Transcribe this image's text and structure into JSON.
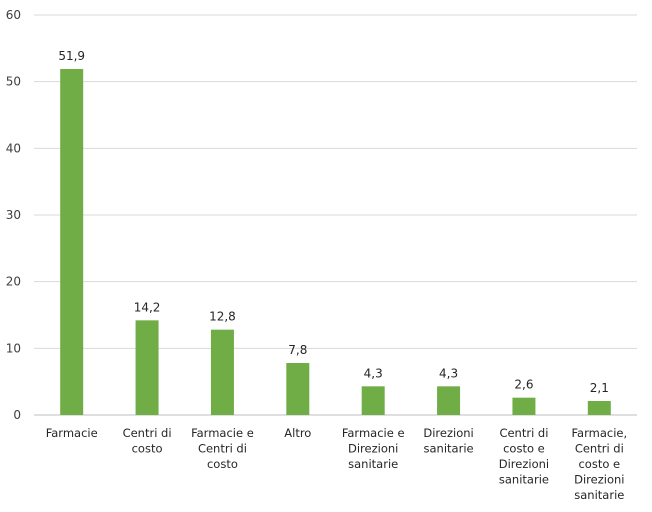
{
  "chart_data": {
    "type": "bar",
    "title": "",
    "xlabel": "",
    "ylabel": "",
    "ylim": [
      0,
      60
    ],
    "yticks": [
      0,
      10,
      20,
      30,
      40,
      50,
      60
    ],
    "grid": true,
    "legend": "none",
    "bar_color": "#70AD47",
    "grid_color": "#D9D9D9",
    "categories": [
      "Farmacie",
      "Centri di costo",
      "Farmacie e Centri di costo",
      "Altro",
      "Farmacie e Direzioni sanitarie",
      "Direzioni sanitarie",
      "Centri di costo e Direzioni sanitarie",
      "Farmacie, Centri di costo e Direzioni sanitarie"
    ],
    "category_lines": [
      [
        "Farmacie"
      ],
      [
        "Centri di",
        "costo"
      ],
      [
        "Farmacie e",
        "Centri di",
        "costo"
      ],
      [
        "Altro"
      ],
      [
        "Farmacie e",
        "Direzioni",
        "sanitarie"
      ],
      [
        "Direzioni",
        "sanitarie"
      ],
      [
        "Centri di",
        "costo e",
        "Direzioni",
        "sanitarie"
      ],
      [
        "Farmacie,",
        "Centri di",
        "costo e",
        "Direzioni",
        "sanitarie"
      ]
    ],
    "values": [
      51.9,
      14.2,
      12.8,
      7.8,
      4.3,
      4.3,
      2.6,
      2.1
    ],
    "value_labels": [
      "51,9",
      "14,2",
      "12,8",
      "7,8",
      "4,3",
      "4,3",
      "2,6",
      "2,1"
    ]
  }
}
